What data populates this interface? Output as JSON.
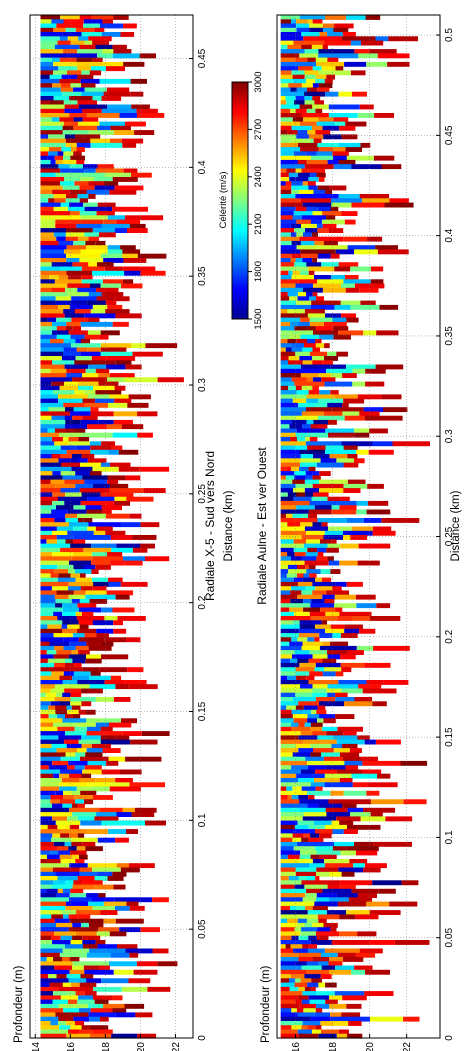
{
  "chart_data": [
    {
      "type": "heatmap",
      "title": "Radiale X-5 - Sud vers Nord",
      "xlabel": "Distance (km)",
      "ylabel": "Profondeur (m)",
      "xlim": [
        0,
        0.47
      ],
      "ylim": [
        13.7,
        23.0
      ],
      "xticks": [
        "0",
        "0.05",
        "0.1",
        "0.15",
        "0.2",
        "0.25",
        "0.3",
        "0.35",
        "0.4",
        "0.45"
      ],
      "yticks": [
        "14",
        "16",
        "18",
        "20",
        "22"
      ],
      "grid": true,
      "surface_depth_m": 14.3,
      "bottom_depth_range_m": [
        16.5,
        22.8
      ]
    },
    {
      "type": "heatmap",
      "title": "Radiale Aulne - Est ver Ouest",
      "xlabel": "Distance (km)",
      "ylabel": "Profondeur (m)",
      "xlim": [
        0,
        0.51
      ],
      "ylim": [
        15.0,
        23.8
      ],
      "xticks": [
        "0",
        "0.05",
        "0.1",
        "0.15",
        "0.2",
        "0.25",
        "0.3",
        "0.35",
        "0.4",
        "0.45",
        "0.5"
      ],
      "yticks": [
        "16",
        "18",
        "20",
        "22"
      ],
      "grid": true,
      "surface_depth_m": 15.2,
      "bottom_depth_range_m": [
        17.0,
        23.6
      ]
    }
  ],
  "colorbar": {
    "label": "Célérité (m/s)",
    "range": [
      1500,
      3000
    ],
    "ticks": [
      "1500",
      "1800",
      "2100",
      "2400",
      "2700",
      "3000"
    ],
    "colormap": "jet"
  },
  "colors": {
    "jet_low": "#00008f",
    "jet_mid": "#7fff7f",
    "jet_high": "#800000"
  }
}
